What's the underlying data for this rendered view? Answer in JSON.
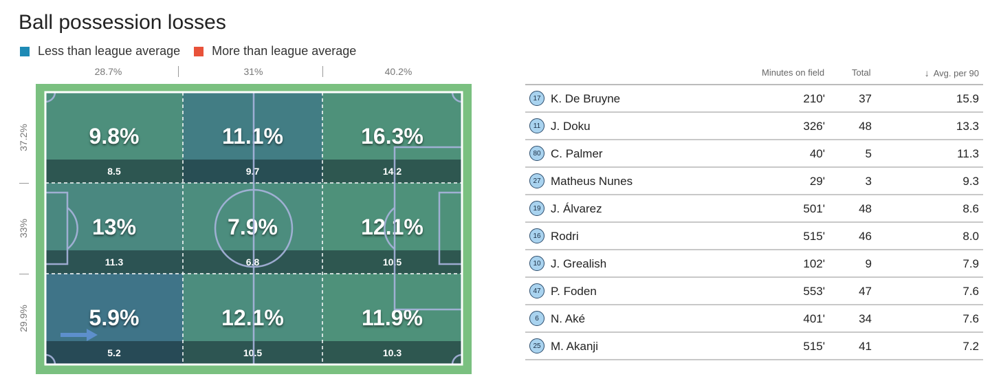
{
  "title": "Ball possession losses",
  "legend": {
    "less": {
      "label": "Less than league average",
      "color": "#1e8ab5"
    },
    "more": {
      "label": "More than league average",
      "color": "#e8523a"
    }
  },
  "column_shares": [
    "28.7%",
    "31%",
    "40.2%"
  ],
  "row_shares": [
    "37.2%",
    "33%",
    "29.9%"
  ],
  "zones": [
    {
      "pct": "9.8%",
      "avg": "8.5",
      "color": "#4d8f7c"
    },
    {
      "pct": "11.1%",
      "avg": "9.7",
      "color": "#427d84"
    },
    {
      "pct": "16.3%",
      "avg": "14.2",
      "color": "#4e917a"
    },
    {
      "pct": "13%",
      "avg": "11.3",
      "color": "#4a8880"
    },
    {
      "pct": "7.9%",
      "avg": "6.8",
      "color": "#4c8d7e"
    },
    {
      "pct": "12.1%",
      "avg": "10.5",
      "color": "#4e917a"
    },
    {
      "pct": "5.9%",
      "avg": "5.2",
      "color": "#3f7488"
    },
    {
      "pct": "12.1%",
      "avg": "10.5",
      "color": "#4c8d7e"
    },
    {
      "pct": "11.9%",
      "avg": "10.3",
      "color": "#4e917a"
    }
  ],
  "table": {
    "headers": {
      "minutes": "Minutes on field",
      "total": "Total",
      "avg": "Avg. per 90",
      "sort_icon": "↓"
    },
    "rows": [
      {
        "number": "17",
        "name": "K. De Bruyne",
        "minutes": "210'",
        "total": "37",
        "avg": "15.9"
      },
      {
        "number": "11",
        "name": "J. Doku",
        "minutes": "326'",
        "total": "48",
        "avg": "13.3"
      },
      {
        "number": "80",
        "name": "C. Palmer",
        "minutes": "40'",
        "total": "5",
        "avg": "11.3"
      },
      {
        "number": "27",
        "name": "Matheus Nunes",
        "minutes": "29'",
        "total": "3",
        "avg": "9.3"
      },
      {
        "number": "19",
        "name": "J. Álvarez",
        "minutes": "501'",
        "total": "48",
        "avg": "8.6"
      },
      {
        "number": "16",
        "name": "Rodri",
        "minutes": "515'",
        "total": "46",
        "avg": "8.0"
      },
      {
        "number": "10",
        "name": "J. Grealish",
        "minutes": "102'",
        "total": "9",
        "avg": "7.9"
      },
      {
        "number": "47",
        "name": "P. Foden",
        "minutes": "553'",
        "total": "47",
        "avg": "7.6"
      },
      {
        "number": "6",
        "name": "N. Aké",
        "minutes": "401'",
        "total": "34",
        "avg": "7.6"
      },
      {
        "number": "25",
        "name": "M. Akanji",
        "minutes": "515'",
        "total": "41",
        "avg": "7.2"
      }
    ]
  }
}
